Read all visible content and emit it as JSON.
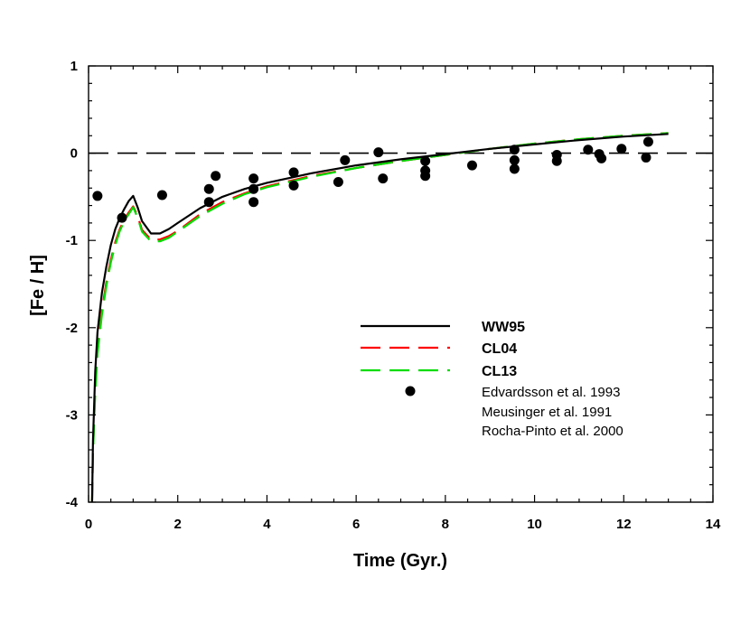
{
  "chart_data": {
    "type": "line",
    "title": "",
    "xlabel": "Time (Gyr.)",
    "ylabel": "[Fe / H]",
    "xlim": [
      0,
      14
    ],
    "ylim": [
      -4,
      1
    ],
    "xticks": [
      0,
      2,
      4,
      6,
      8,
      10,
      12,
      14
    ],
    "yticks": [
      -4,
      -3,
      -2,
      -1,
      0,
      1
    ],
    "xtick_labels": [
      "0",
      "2",
      "4",
      "6",
      "8",
      "10",
      "12",
      "14"
    ],
    "ytick_labels": [
      "-4",
      "-3",
      "-2",
      "-1",
      "0",
      "1"
    ],
    "grid": false,
    "reference_line": {
      "y": 0,
      "style": "dashed",
      "color": "#000000"
    },
    "legend_position": "center-right",
    "series": [
      {
        "name": "WW95",
        "style": "solid",
        "color": "#000000",
        "x": [
          0.08,
          0.1,
          0.15,
          0.2,
          0.3,
          0.4,
          0.5,
          0.6,
          0.7,
          0.8,
          0.9,
          1.0,
          1.1,
          1.2,
          1.4,
          1.6,
          1.8,
          2.0,
          2.5,
          3.0,
          3.5,
          4.0,
          5.0,
          6.0,
          7.0,
          8.0,
          9.0,
          10.0,
          11.0,
          12.0,
          13.0
        ],
        "y": [
          -4.0,
          -3.3,
          -2.5,
          -2.05,
          -1.6,
          -1.3,
          -1.05,
          -0.87,
          -0.74,
          -0.64,
          -0.55,
          -0.49,
          -0.62,
          -0.78,
          -0.92,
          -0.92,
          -0.87,
          -0.8,
          -0.63,
          -0.5,
          -0.41,
          -0.34,
          -0.23,
          -0.14,
          -0.07,
          -0.01,
          0.05,
          0.1,
          0.15,
          0.19,
          0.22
        ]
      },
      {
        "name": "CL04",
        "style": "dashed",
        "color": "#ff0000",
        "x": [
          0.08,
          0.1,
          0.15,
          0.2,
          0.3,
          0.4,
          0.5,
          0.6,
          0.7,
          0.8,
          0.9,
          1.0,
          1.1,
          1.2,
          1.4,
          1.6,
          1.8,
          2.0,
          2.5,
          3.0,
          3.5,
          4.0,
          5.0,
          6.0,
          7.0,
          8.0,
          9.0,
          10.0,
          11.0,
          12.0,
          13.0
        ],
        "y": [
          -4.0,
          -3.4,
          -2.7,
          -2.25,
          -1.8,
          -1.48,
          -1.22,
          -1.02,
          -0.87,
          -0.76,
          -0.68,
          -0.61,
          -0.72,
          -0.88,
          -0.99,
          -0.99,
          -0.95,
          -0.89,
          -0.7,
          -0.56,
          -0.46,
          -0.38,
          -0.26,
          -0.17,
          -0.09,
          -0.02,
          0.05,
          0.11,
          0.16,
          0.2,
          0.23
        ]
      },
      {
        "name": "CL13",
        "style": "dashed",
        "color": "#00dd00",
        "x": [
          0.08,
          0.1,
          0.15,
          0.2,
          0.3,
          0.4,
          0.5,
          0.6,
          0.7,
          0.8,
          0.9,
          1.0,
          1.1,
          1.2,
          1.4,
          1.6,
          1.8,
          2.0,
          2.5,
          3.0,
          3.5,
          4.0,
          5.0,
          6.0,
          7.0,
          8.0,
          9.0,
          10.0,
          11.0,
          12.0,
          13.0
        ],
        "y": [
          -4.0,
          -3.45,
          -2.75,
          -2.3,
          -1.85,
          -1.52,
          -1.25,
          -1.05,
          -0.89,
          -0.78,
          -0.7,
          -0.62,
          -0.74,
          -0.9,
          -1.01,
          -1.01,
          -0.97,
          -0.9,
          -0.72,
          -0.58,
          -0.47,
          -0.39,
          -0.27,
          -0.17,
          -0.09,
          -0.02,
          0.05,
          0.11,
          0.16,
          0.2,
          0.23
        ]
      }
    ],
    "observations": {
      "legend_labels": [
        "Edvardsson et al. 1993",
        "Meusinger et al. 1991",
        "Rocha-Pinto et al. 2000"
      ],
      "color": "#000000",
      "points": [
        [
          0.2,
          -0.49
        ],
        [
          0.75,
          -0.74
        ],
        [
          1.65,
          -0.48
        ],
        [
          2.7,
          -0.41
        ],
        [
          2.7,
          -0.56
        ],
        [
          2.85,
          -0.26
        ],
        [
          3.7,
          -0.29
        ],
        [
          3.7,
          -0.41
        ],
        [
          3.7,
          -0.56
        ],
        [
          4.6,
          -0.22
        ],
        [
          4.6,
          -0.37
        ],
        [
          5.6,
          -0.33
        ],
        [
          5.75,
          -0.08
        ],
        [
          6.5,
          0.01
        ],
        [
          6.6,
          -0.29
        ],
        [
          7.55,
          -0.09
        ],
        [
          7.55,
          -0.2
        ],
        [
          7.55,
          -0.26
        ],
        [
          8.6,
          -0.14
        ],
        [
          9.55,
          0.04
        ],
        [
          9.55,
          -0.08
        ],
        [
          9.55,
          -0.18
        ],
        [
          10.5,
          -0.02
        ],
        [
          10.5,
          -0.09
        ],
        [
          11.2,
          0.04
        ],
        [
          11.45,
          -0.01
        ],
        [
          11.5,
          -0.06
        ],
        [
          11.95,
          0.05
        ],
        [
          12.5,
          -0.05
        ],
        [
          12.55,
          0.13
        ]
      ]
    }
  }
}
